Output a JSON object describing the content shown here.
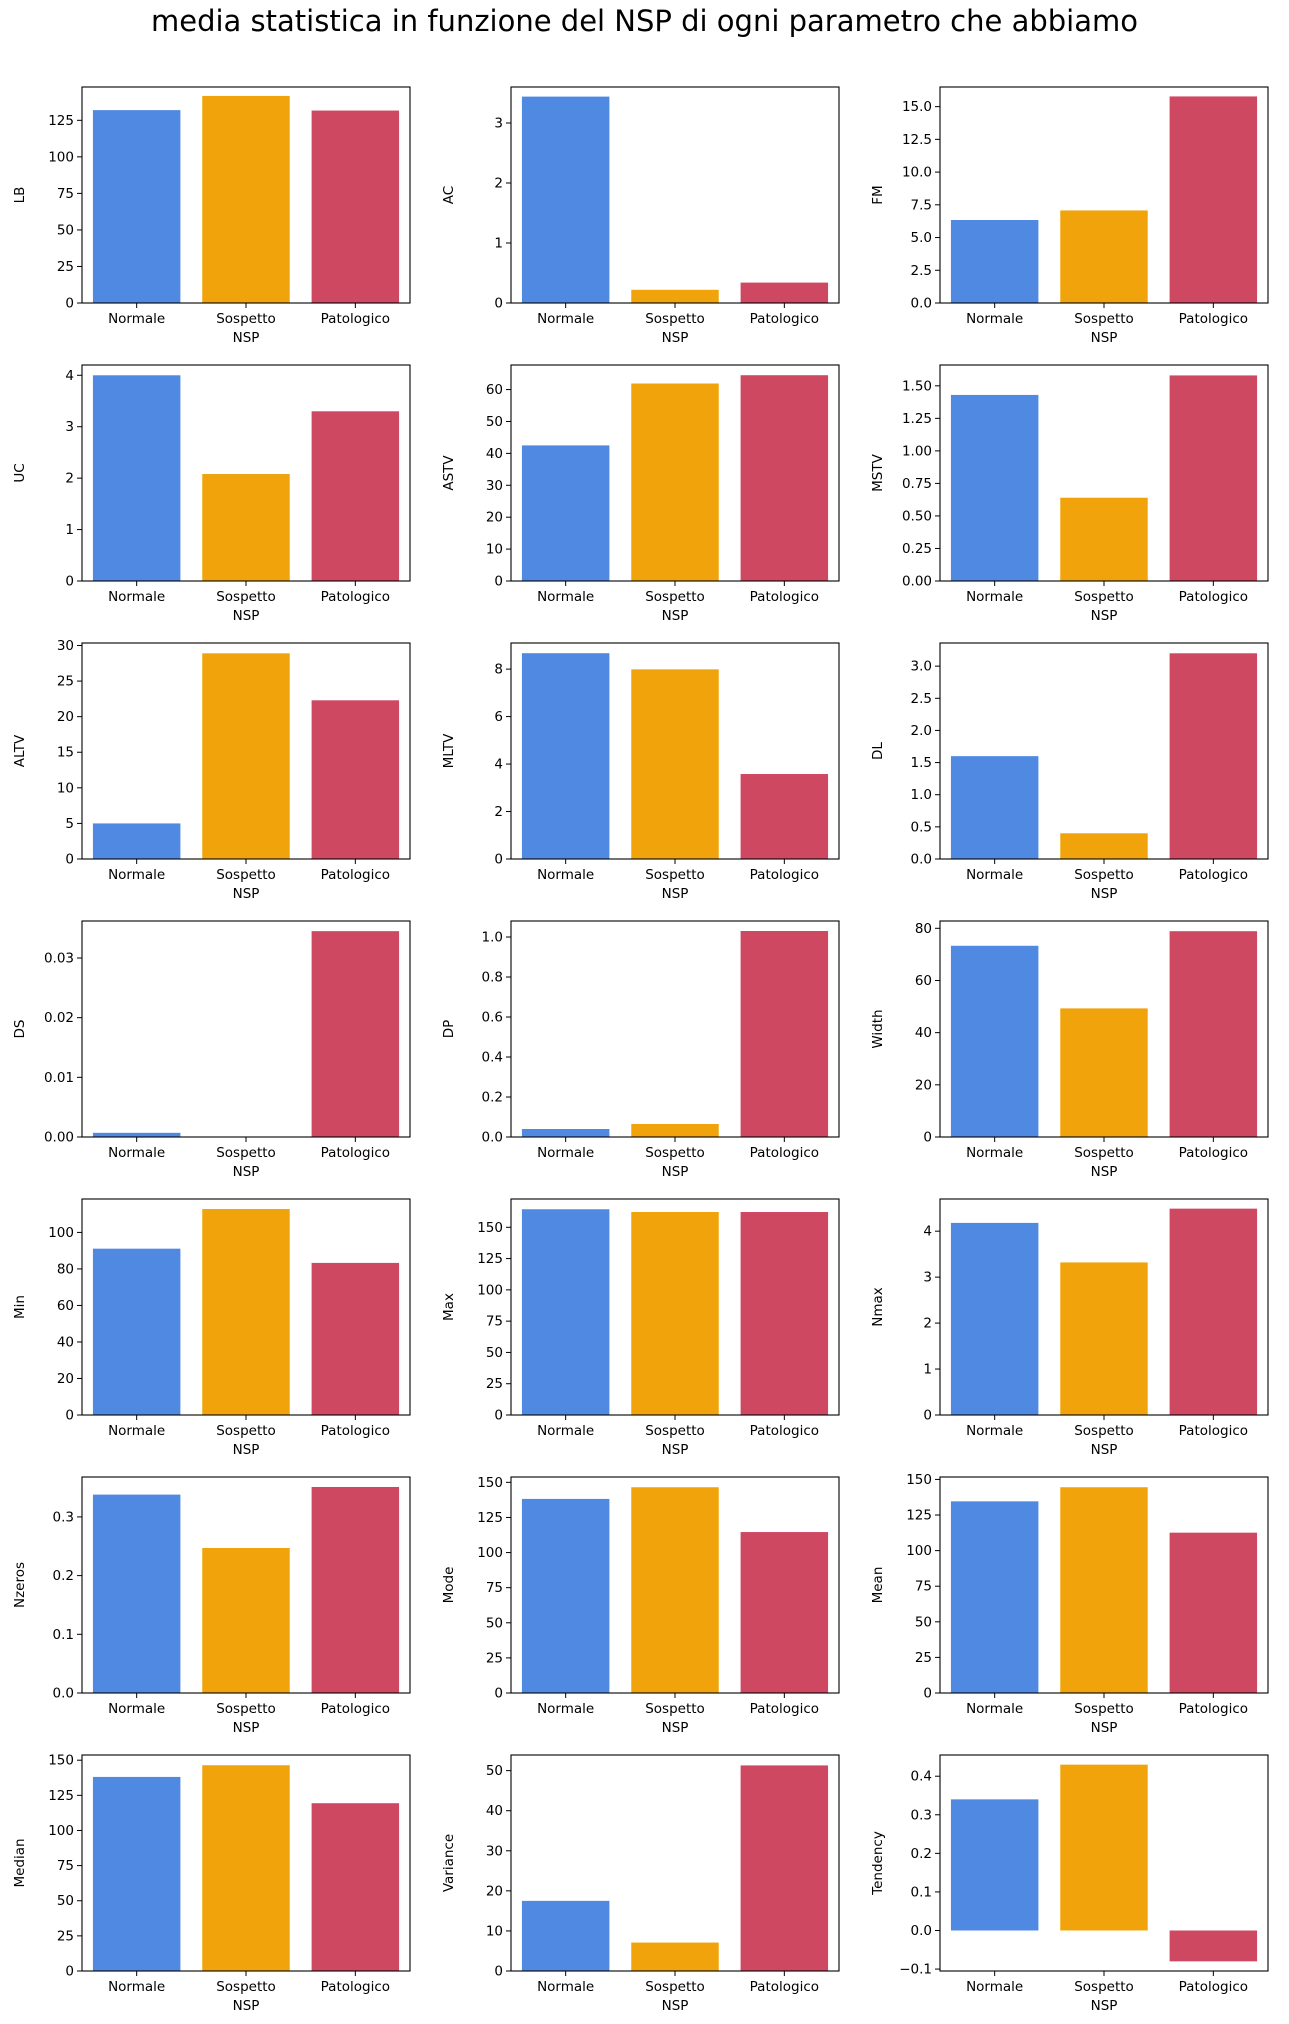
{
  "figure": {
    "title": "media statistica in funzione del NSP di ogni parametro che abbiamo"
  },
  "colors": {
    "Normale": "#4f89e2",
    "Sospetto": "#f0a30a",
    "Patologico": "#cf4862",
    "axis": "#000000"
  },
  "chart_data": [
    {
      "type": "bar",
      "xlabel": "NSP",
      "ylabel": "LB",
      "categories": [
        "Normale",
        "Sospetto",
        "Patologico"
      ],
      "values": [
        131.98,
        141.68,
        131.69
      ],
      "ylim": [
        0,
        147.8
      ],
      "yticks": [
        0,
        25,
        50,
        75,
        100,
        125
      ],
      "yticklabels": [
        "0",
        "25",
        "50",
        "75",
        "100",
        "125"
      ],
      "grid": false
    },
    {
      "type": "bar",
      "xlabel": "NSP",
      "ylabel": "AC",
      "categories": [
        "Normale",
        "Sospetto",
        "Patologico"
      ],
      "values": [
        3.44,
        0.22,
        0.34
      ],
      "ylim": [
        0,
        3.6
      ],
      "yticks": [
        0,
        1,
        2,
        3
      ],
      "yticklabels": [
        "0",
        "1",
        "2",
        "3"
      ],
      "grid": false
    },
    {
      "type": "bar",
      "xlabel": "NSP",
      "ylabel": "FM",
      "categories": [
        "Normale",
        "Sospetto",
        "Patologico"
      ],
      "values": [
        6.34,
        7.07,
        15.78
      ],
      "ylim": [
        0,
        16.5
      ],
      "yticks": [
        0,
        2.5,
        5,
        7.5,
        10,
        12.5,
        15
      ],
      "yticklabels": [
        "0.0",
        "2.5",
        "5.0",
        "7.5",
        "10.0",
        "12.5",
        "15.0"
      ],
      "grid": false
    },
    {
      "type": "bar",
      "xlabel": "NSP",
      "ylabel": "UC",
      "categories": [
        "Normale",
        "Sospetto",
        "Patologico"
      ],
      "values": [
        4.0,
        2.08,
        3.3
      ],
      "ylim": [
        0,
        4.2
      ],
      "yticks": [
        0,
        1,
        2,
        3,
        4
      ],
      "yticklabels": [
        "0",
        "1",
        "2",
        "3",
        "4"
      ],
      "grid": false
    },
    {
      "type": "bar",
      "xlabel": "NSP",
      "ylabel": "ASTV",
      "categories": [
        "Normale",
        "Sospetto",
        "Patologico"
      ],
      "values": [
        42.5,
        61.9,
        64.5
      ],
      "ylim": [
        0,
        67.7
      ],
      "yticks": [
        0,
        10,
        20,
        30,
        40,
        50,
        60
      ],
      "yticklabels": [
        "0",
        "10",
        "20",
        "30",
        "40",
        "50",
        "60"
      ],
      "grid": false
    },
    {
      "type": "bar",
      "xlabel": "NSP",
      "ylabel": "MSTV",
      "categories": [
        "Normale",
        "Sospetto",
        "Patologico"
      ],
      "values": [
        1.43,
        0.64,
        1.58
      ],
      "ylim": [
        0,
        1.66
      ],
      "yticks": [
        0,
        0.25,
        0.5,
        0.75,
        1.0,
        1.25,
        1.5
      ],
      "yticklabels": [
        "0.00",
        "0.25",
        "0.50",
        "0.75",
        "1.00",
        "1.25",
        "1.50"
      ],
      "grid": false
    },
    {
      "type": "bar",
      "xlabel": "NSP",
      "ylabel": "ALTV",
      "categories": [
        "Normale",
        "Sospetto",
        "Patologico"
      ],
      "values": [
        5.0,
        28.9,
        22.3
      ],
      "ylim": [
        0,
        30.35
      ],
      "yticks": [
        0,
        5,
        10,
        15,
        20,
        25,
        30
      ],
      "yticklabels": [
        "0",
        "5",
        "10",
        "15",
        "20",
        "25",
        "30"
      ],
      "grid": false
    },
    {
      "type": "bar",
      "xlabel": "NSP",
      "ylabel": "MLTV",
      "categories": [
        "Normale",
        "Sospetto",
        "Patologico"
      ],
      "values": [
        8.67,
        7.99,
        3.58
      ],
      "ylim": [
        0,
        9.1
      ],
      "yticks": [
        0,
        2,
        4,
        6,
        8
      ],
      "yticklabels": [
        "0",
        "2",
        "4",
        "6",
        "8"
      ],
      "grid": false
    },
    {
      "type": "bar",
      "xlabel": "NSP",
      "ylabel": "DL",
      "categories": [
        "Normale",
        "Sospetto",
        "Patologico"
      ],
      "values": [
        1.6,
        0.4,
        3.2
      ],
      "ylim": [
        0,
        3.36
      ],
      "yticks": [
        0,
        0.5,
        1.0,
        1.5,
        2.0,
        2.5,
        3.0
      ],
      "yticklabels": [
        "0.0",
        "0.5",
        "1.0",
        "1.5",
        "2.0",
        "2.5",
        "3.0"
      ],
      "grid": false
    },
    {
      "type": "bar",
      "xlabel": "NSP",
      "ylabel": "DS",
      "categories": [
        "Normale",
        "Sospetto",
        "Patologico"
      ],
      "values": [
        0.0007,
        0.0,
        0.0345
      ],
      "ylim": [
        0,
        0.0362
      ],
      "yticks": [
        0,
        0.01,
        0.02,
        0.03
      ],
      "yticklabels": [
        "0.00",
        "0.01",
        "0.02",
        "0.03"
      ],
      "grid": false
    },
    {
      "type": "bar",
      "xlabel": "NSP",
      "ylabel": "DP",
      "categories": [
        "Normale",
        "Sospetto",
        "Patologico"
      ],
      "values": [
        0.04,
        0.065,
        1.03
      ],
      "ylim": [
        0,
        1.08
      ],
      "yticks": [
        0,
        0.2,
        0.4,
        0.6,
        0.8,
        1.0
      ],
      "yticklabels": [
        "0.0",
        "0.2",
        "0.4",
        "0.6",
        "0.8",
        "1.0"
      ],
      "grid": false
    },
    {
      "type": "bar",
      "xlabel": "NSP",
      "ylabel": "Width",
      "categories": [
        "Normale",
        "Sospetto",
        "Patologico"
      ],
      "values": [
        73.3,
        49.3,
        78.9
      ],
      "ylim": [
        0,
        82.8
      ],
      "yticks": [
        0,
        20,
        40,
        60,
        80
      ],
      "yticklabels": [
        "0",
        "20",
        "40",
        "60",
        "80"
      ],
      "grid": false
    },
    {
      "type": "bar",
      "xlabel": "NSP",
      "ylabel": "Min",
      "categories": [
        "Normale",
        "Sospetto",
        "Patologico"
      ],
      "values": [
        91.1,
        112.8,
        83.3
      ],
      "ylim": [
        0,
        118.3
      ],
      "yticks": [
        0,
        20,
        40,
        60,
        80,
        100
      ],
      "yticklabels": [
        "0",
        "20",
        "40",
        "60",
        "80",
        "100"
      ],
      "grid": false
    },
    {
      "type": "bar",
      "xlabel": "NSP",
      "ylabel": "Max",
      "categories": [
        "Normale",
        "Sospetto",
        "Patologico"
      ],
      "values": [
        164.4,
        162.2,
        162.2
      ],
      "ylim": [
        0,
        172.6
      ],
      "yticks": [
        0,
        25,
        50,
        75,
        100,
        125,
        150
      ],
      "yticklabels": [
        "0",
        "25",
        "50",
        "75",
        "100",
        "125",
        "150"
      ],
      "grid": false
    },
    {
      "type": "bar",
      "xlabel": "NSP",
      "ylabel": "Nmax",
      "categories": [
        "Normale",
        "Sospetto",
        "Patologico"
      ],
      "values": [
        4.18,
        3.32,
        4.49
      ],
      "ylim": [
        0,
        4.7
      ],
      "yticks": [
        0,
        1,
        2,
        3,
        4
      ],
      "yticklabels": [
        "0",
        "1",
        "2",
        "3",
        "4"
      ],
      "grid": false
    },
    {
      "type": "bar",
      "xlabel": "NSP",
      "ylabel": "Nzeros",
      "categories": [
        "Normale",
        "Sospetto",
        "Patologico"
      ],
      "values": [
        0.338,
        0.247,
        0.351
      ],
      "ylim": [
        0,
        0.368
      ],
      "yticks": [
        0,
        0.1,
        0.2,
        0.3
      ],
      "yticklabels": [
        "0.0",
        "0.1",
        "0.2",
        "0.3"
      ],
      "grid": false
    },
    {
      "type": "bar",
      "xlabel": "NSP",
      "ylabel": "Mode",
      "categories": [
        "Normale",
        "Sospetto",
        "Patologico"
      ],
      "values": [
        138.2,
        146.5,
        114.6
      ],
      "ylim": [
        0,
        153.8
      ],
      "yticks": [
        0,
        25,
        50,
        75,
        100,
        125,
        150
      ],
      "yticklabels": [
        "0",
        "25",
        "50",
        "75",
        "100",
        "125",
        "150"
      ],
      "grid": false
    },
    {
      "type": "bar",
      "xlabel": "NSP",
      "ylabel": "Mean",
      "categories": [
        "Normale",
        "Sospetto",
        "Patologico"
      ],
      "values": [
        134.6,
        144.5,
        112.6
      ],
      "ylim": [
        0,
        151.7
      ],
      "yticks": [
        0,
        25,
        50,
        75,
        100,
        125,
        150
      ],
      "yticklabels": [
        "0",
        "25",
        "50",
        "75",
        "100",
        "125",
        "150"
      ],
      "grid": false
    },
    {
      "type": "bar",
      "xlabel": "NSP",
      "ylabel": "Median",
      "categories": [
        "Normale",
        "Sospetto",
        "Patologico"
      ],
      "values": [
        138.1,
        146.4,
        119.4
      ],
      "ylim": [
        0,
        153.7
      ],
      "yticks": [
        0,
        25,
        50,
        75,
        100,
        125,
        150
      ],
      "yticklabels": [
        "0",
        "25",
        "50",
        "75",
        "100",
        "125",
        "150"
      ],
      "grid": false
    },
    {
      "type": "bar",
      "xlabel": "NSP",
      "ylabel": "Variance",
      "categories": [
        "Normale",
        "Sospetto",
        "Patologico"
      ],
      "values": [
        17.5,
        7.1,
        51.3
      ],
      "ylim": [
        0,
        53.9
      ],
      "yticks": [
        0,
        10,
        20,
        30,
        40,
        50
      ],
      "yticklabels": [
        "0",
        "10",
        "20",
        "30",
        "40",
        "50"
      ],
      "grid": false
    },
    {
      "type": "bar",
      "xlabel": "NSP",
      "ylabel": "Tendency",
      "categories": [
        "Normale",
        "Sospetto",
        "Patologico"
      ],
      "values": [
        0.34,
        0.43,
        -0.08
      ],
      "ylim": [
        -0.105,
        0.455
      ],
      "yticks": [
        -0.1,
        0.0,
        0.1,
        0.2,
        0.3,
        0.4
      ],
      "yticklabels": [
        "−0.1",
        "0.0",
        "0.1",
        "0.2",
        "0.3",
        "0.4"
      ],
      "grid": false
    }
  ]
}
